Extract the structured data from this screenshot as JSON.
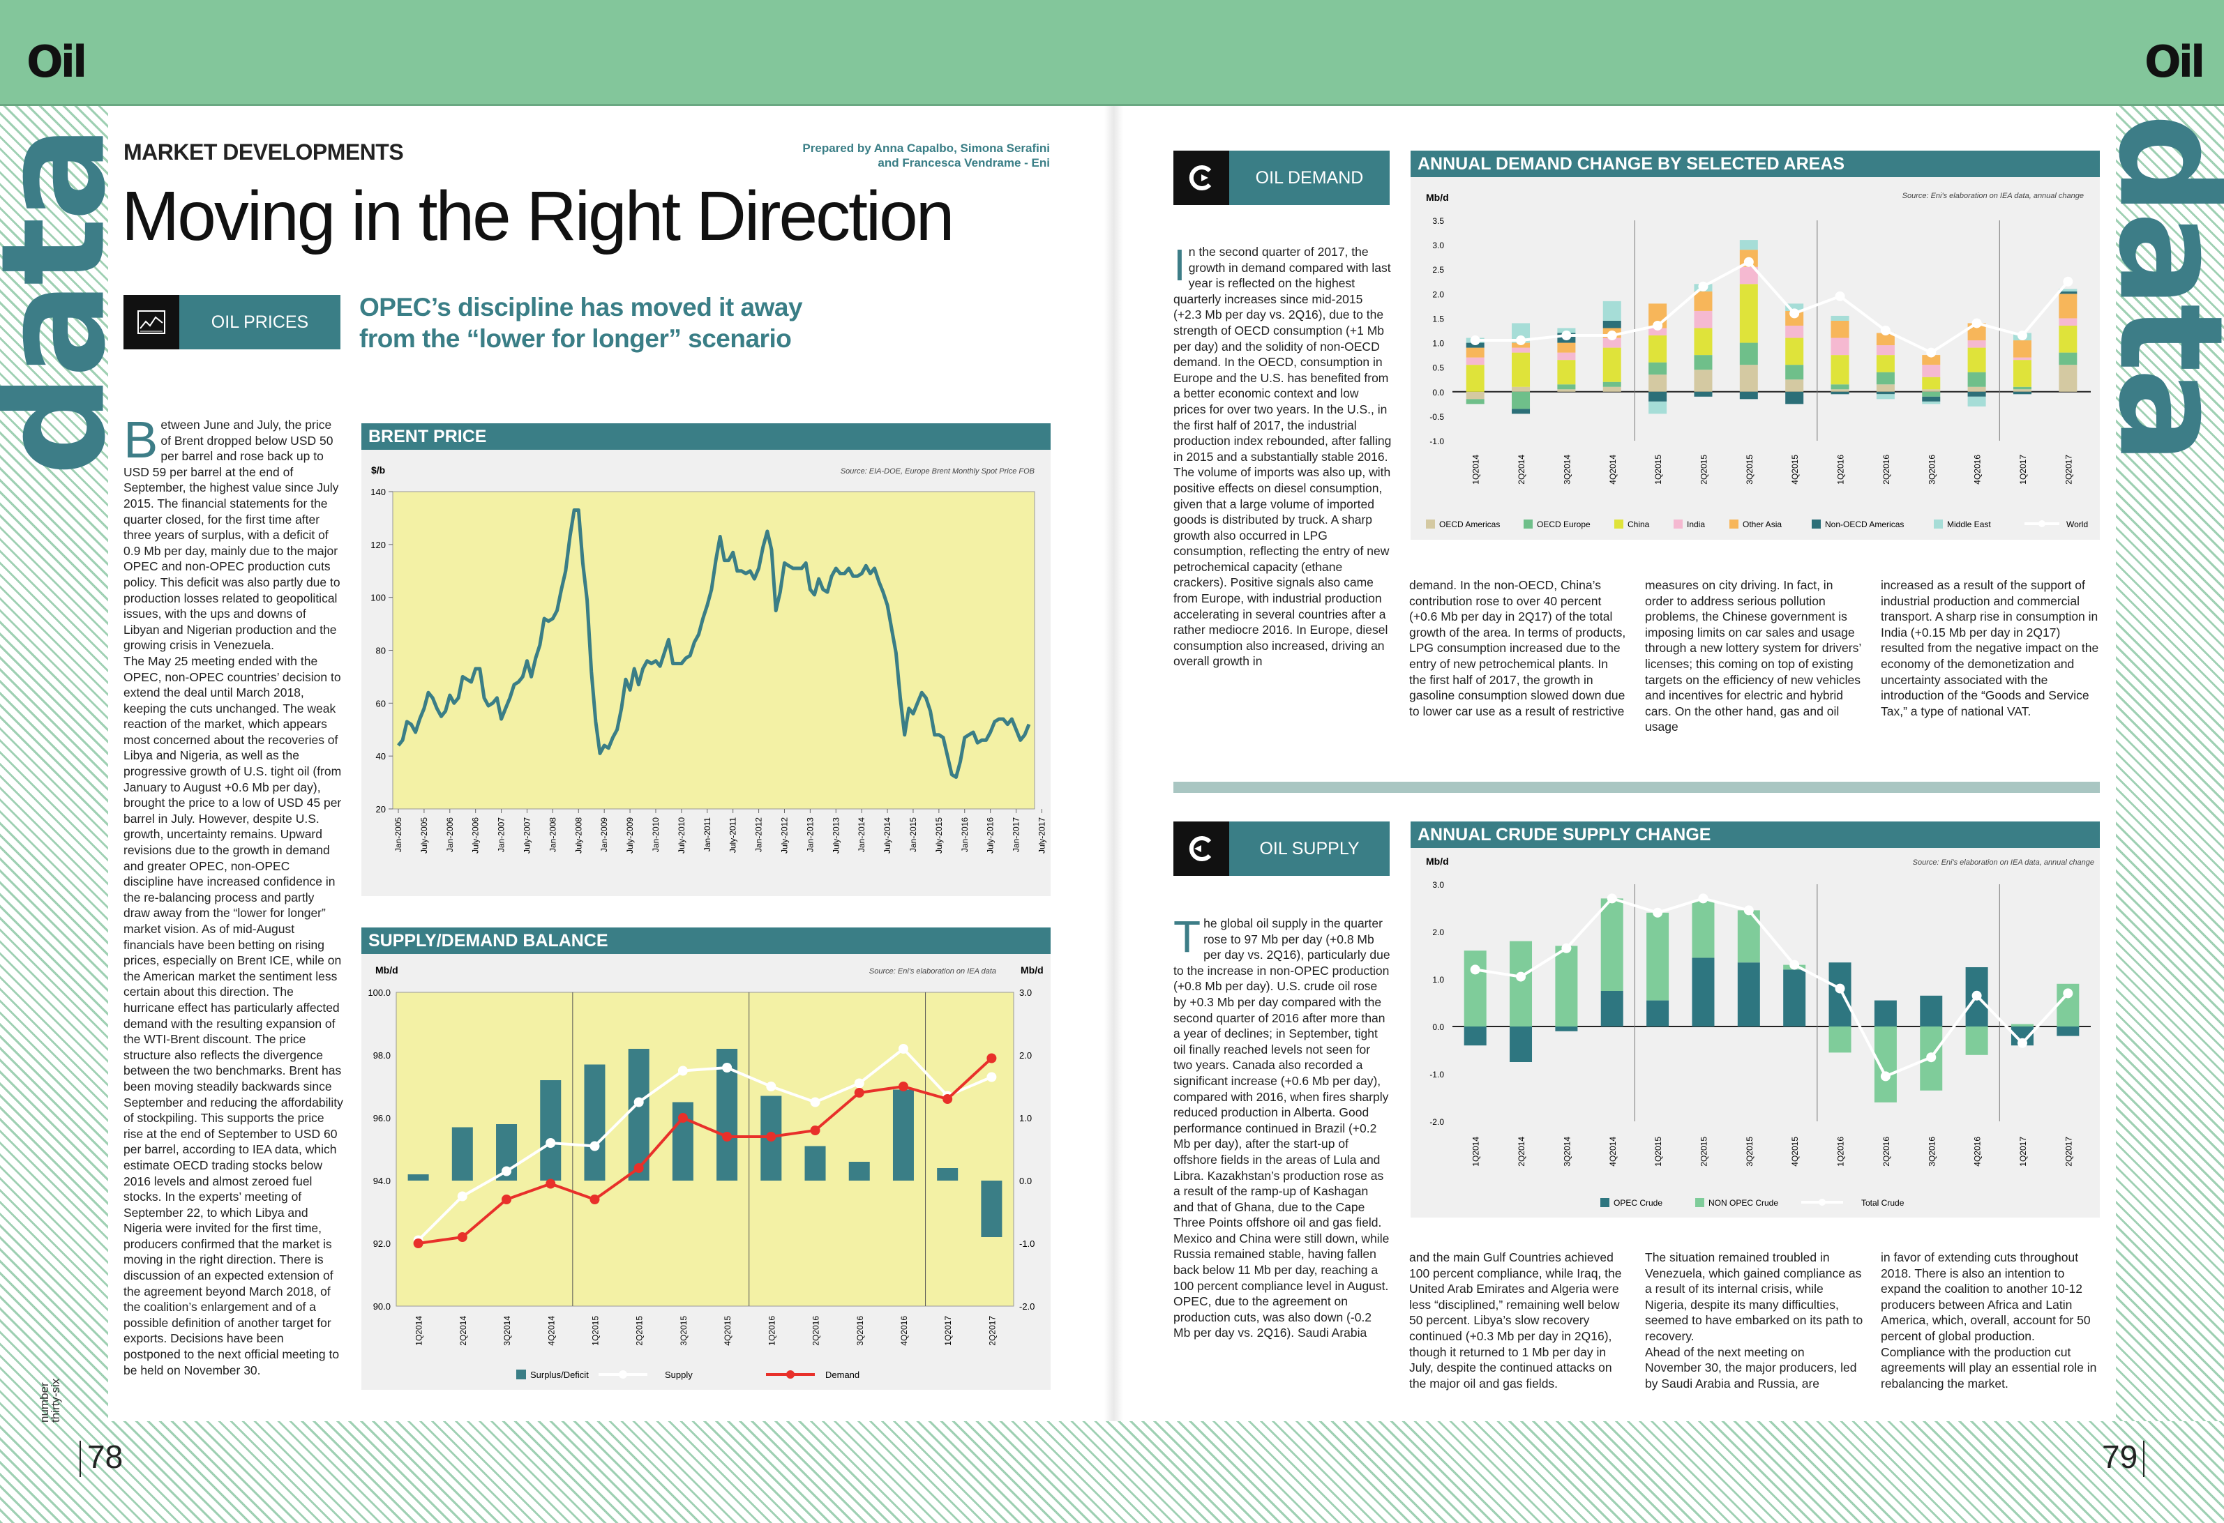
{
  "brand": {
    "logo_left": "Oil",
    "logo_right": "Oil",
    "side_word": "data"
  },
  "left_page": {
    "section": "MARKET DEVELOPMENTS",
    "credits": "Prepared by Anna Capalbo, Simona Serafini\nand Francesca Vendrame - Eni",
    "title": "Moving in the Right Direction",
    "category": "OIL PRICES",
    "subtitle": "OPEC’s discipline has moved it away\nfrom the “lower for longer” scenario",
    "dropcap": "B",
    "body": "etween June and July, the price of Brent dropped below USD 50 per barrel and rose back up to USD 59 per barrel at the end of September, the highest value since July 2015. The financial statements for the quarter closed, for the first time after three years of surplus, with a deficit of 0.9 Mb per day, mainly due to the major OPEC and non-OPEC production cuts policy. This deficit was also partly due to production losses related to geopolitical issues, with the ups and downs of Libyan and Nigerian production and the growing crisis in Venezuela.\nThe May 25 meeting ended with the OPEC, non-OPEC countries’ decision to extend the deal until March 2018, keeping the cuts unchanged. The weak reaction of the market, which appears most concerned about the recoveries of Libya and Nigeria, as well as the progressive growth of U.S. tight oil (from January to August +0.6 Mb per day), brought the price to a low of USD 45 per barrel in July. However, despite U.S. growth, uncertainty remains. Upward revisions due to the growth in demand and greater OPEC, non-OPEC discipline have increased confidence in the re-balancing process and partly draw away from the “lower for longer” market vision. As of mid-August financials have been betting on rising prices, especially on Brent ICE, while on the American market the sentiment less certain about this direction. The hurricane effect has particularly affected demand with the resulting expansion of the WTI-Brent discount. The price structure also reflects the divergence between the two benchmarks. Brent has been moving steadily backwards since September and reducing the affordability of stockpiling. This supports the price rise at the end of September to USD 60 per barrel, according to IEA data, which estimate OECD trading stocks below 2016 levels and almost zeroed fuel stocks. In the experts’ meeting of September 22, to which Libya and Nigeria were invited for the first time, producers confirmed that the market is moving in the right direction. There is discussion of an expected extension of the agreement beyond March 2018, of the coalition’s enlargement and of a possible definition of another target for exports. Decisions have been postponed to the next official meeting to be held on November 30.",
    "footer_label": "number\nthirty-six",
    "page_number": "78"
  },
  "right_page": {
    "demand_label": "OIL DEMAND",
    "supply_label": "OIL SUPPLY",
    "demand_dropcap": "I",
    "demand_col1": "n the second quarter of 2017, the growth in demand compared with last year is reflected on the highest quarterly increases since mid-2015 (+2.3 Mb per day vs. 2Q16), due to the strength of OECD consumption (+1 Mb per day) and the solidity of non-OECD demand. In the OECD, consumption in Europe and the U.S. has benefited from a better economic context and low prices for over two years. In the U.S., in the first half of 2017, the industrial production index rebounded, after falling in 2015 and a substantially stable 2016. The volume of imports was also up, with positive effects on diesel consumption, given that a large volume of imported goods is distributed by truck. A sharp growth also occurred in LPG consumption, reflecting the entry of new petrochemical capacity (ethane crackers). Positive signals also came from Europe, with industrial production accelerating in several countries after a rather mediocre 2016. In Europe, diesel consumption also increased, driving an overall growth in",
    "demand_col2": "demand. In the non-OECD, China’s contribution rose to over 40 percent (+0.6 Mb per day in 2Q17) of the total growth of the area. In terms of products, LPG consumption increased due to the entry of new petrochemical plants. In the first half of 2017, the growth in gasoline consumption slowed down due to lower car use as a result of restrictive",
    "demand_col3": "measures on city driving. In fact, in order to address serious pollution problems, the Chinese government is imposing limits on car sales and usage through a new lottery system for drivers’ licenses; this coming on top of existing targets on the efficiency of new vehicles and incentives for electric and hybrid cars. On the other hand, gas and oil usage",
    "demand_col4": "increased as a result of the support of industrial production and commercial transport. A sharp rise in consumption in India (+0.15 Mb per day in 2Q17) resulted from the negative impact on the economy of the demonetization and uncertainty associated with the introduction of the “Goods and Service Tax,” a type of national VAT.",
    "supply_dropcap": "T",
    "supply_col1": "he global oil supply in the quarter rose to 97 Mb per day (+0.8 Mb per day vs. 2Q16), particularly due to the increase in non-OPEC production (+0.8 Mb per day). U.S. crude oil rose by +0.3 Mb per day compared with the second quarter of 2016 after more than a year of declines; in September, tight oil finally reached levels not seen for two years. Canada also recorded a significant increase (+0.6 Mb per day), compared with 2016, when fires sharply reduced production in Alberta. Good performance continued in Brazil (+0.2 Mb per day), after the start-up of offshore fields in the areas of Lula and Libra. Kazakhstan’s production rose as a result of the ramp-up of Kashagan and that of Ghana, due to the Cape Three Points offshore oil and gas field.\nMexico and China were still down, while Russia remained stable, having fallen back below 11 Mb per day, reaching a 100 percent compliance level in August.\nOPEC, due to the agreement on production cuts, was also down (-0.2 Mb per day vs. 2Q16). Saudi Arabia",
    "supply_col2": "and the main Gulf Countries achieved 100 percent compliance, while Iraq, the United Arab Emirates and Algeria were less “disciplined,” remaining well below 50 percent. Libya’s slow recovery continued (+0.3 Mb per day in 2Q16), though it returned to 1 Mb per day in July, despite the continued attacks on the major oil and gas fields.",
    "supply_col3": "The situation remained troubled in Venezuela, which gained compliance as a result of its internal crisis, while Nigeria, despite its many difficulties, seemed to have embarked on its path to recovery.\nAhead of the next meeting on November 30, the major producers, led by Saudi Arabia and Russia, are",
    "supply_col4": "in favor of extending cuts throughout 2018. There is also an intention to expand the coalition to another 10-12 producers between Africa and Latin America, which, overall, account for 50 percent of global production. Compliance with the production cut agreements will play an essential role in rebalancing the market.",
    "page_number": "79"
  },
  "chart_data": [
    {
      "type": "line",
      "title": "BRENT PRICE",
      "ylabel": "$/b",
      "source": "Source: EIA-DOE, Europe Brent Monthly Spot Price FOB",
      "ylim": [
        20,
        140
      ],
      "yticks": [
        "140",
        "120",
        "100",
        "80",
        "60",
        "40",
        "20"
      ],
      "xticks": [
        "Jan-2005",
        "July-2005",
        "Jan-2006",
        "July-2006",
        "Jan-2007",
        "July-2007",
        "Jan-2008",
        "July-2008",
        "Jan-2009",
        "July-2009",
        "Jan-2010",
        "July-2010",
        "Jan-2011",
        "July-2011",
        "Jan-2012",
        "July-2012",
        "Jan-2013",
        "July-2013",
        "Jan-2014",
        "July-2014",
        "Jan-2015",
        "July-2015",
        "Jan-2016",
        "July-2016",
        "Jan-2017",
        "July-2017"
      ],
      "x_start": "Jan-2005",
      "x_step": "monthly",
      "values": [
        44,
        46,
        53,
        52,
        49,
        54,
        58,
        64,
        62,
        58,
        55,
        57,
        63,
        60,
        62,
        70,
        69,
        68,
        73,
        73,
        62,
        59,
        60,
        62,
        54,
        58,
        62,
        67,
        68,
        70,
        76,
        70,
        77,
        82,
        92,
        91,
        92,
        95,
        103,
        110,
        123,
        133,
        133,
        113,
        99,
        72,
        53,
        41,
        44,
        43,
        47,
        50,
        58,
        69,
        65,
        73,
        67,
        73,
        76,
        75,
        76,
        74,
        79,
        84,
        75,
        75,
        75,
        77,
        78,
        83,
        86,
        92,
        97,
        103,
        114,
        123,
        114,
        114,
        117,
        110,
        110,
        109,
        110,
        107,
        111,
        119,
        125,
        118,
        95,
        102,
        113,
        112,
        111,
        111,
        111,
        113,
        103,
        101,
        107,
        103,
        102,
        108,
        111,
        109,
        109,
        111,
        108,
        108,
        109,
        112,
        109,
        111,
        106,
        102,
        97,
        88,
        79,
        62,
        48,
        58,
        56,
        60,
        64,
        62,
        57,
        48,
        48,
        47,
        40,
        33,
        32,
        38,
        47,
        48,
        49,
        45,
        46,
        46,
        49,
        53,
        54,
        54,
        52,
        54,
        50,
        46,
        48,
        52
      ]
    },
    {
      "type": "bar+line",
      "title": "SUPPLY/DEMAND BALANCE",
      "ylabel_left": "Mb/d",
      "ylabel_right": "Mb/d",
      "source": "Source: Eni's elaboration on IEA data",
      "ylim_left": [
        90,
        100
      ],
      "ylim_right": [
        -2,
        3
      ],
      "yticks_left": [
        "100.0",
        "98.0",
        "96.0",
        "94.0",
        "92.0",
        "90.0"
      ],
      "yticks_right": [
        "3.0",
        "2.0",
        "1.0",
        "0.0",
        "-1.0",
        "-2.0"
      ],
      "categories": [
        "1Q2014",
        "2Q2014",
        "3Q2014",
        "4Q2014",
        "1Q2015",
        "2Q2015",
        "3Q2015",
        "4Q2015",
        "1Q2016",
        "2Q2016",
        "3Q2016",
        "4Q2016",
        "1Q2017",
        "2Q2017"
      ],
      "series": [
        {
          "name": "Surplus/Deficit",
          "axis": "right",
          "values": [
            0.1,
            0.85,
            0.9,
            1.6,
            1.85,
            2.1,
            1.25,
            2.1,
            1.35,
            0.55,
            0.3,
            1.45,
            0.2,
            -0.9
          ]
        },
        {
          "name": "Supply",
          "axis": "left",
          "values": [
            92.1,
            93.5,
            94.3,
            95.2,
            95.1,
            96.5,
            97.5,
            97.6,
            97.0,
            96.5,
            97.1,
            98.2,
            96.7,
            97.3
          ]
        },
        {
          "name": "Demand",
          "axis": "left",
          "values": [
            92.0,
            92.2,
            93.4,
            93.9,
            93.4,
            94.4,
            96.0,
            95.4,
            95.4,
            95.6,
            96.8,
            97.0,
            96.6,
            97.9
          ]
        }
      ]
    },
    {
      "type": "stacked-bar+line",
      "title": "ANNUAL DEMAND CHANGE BY SELECTED AREAS",
      "ylabel": "Mb/d",
      "source": "Source: Eni's elaboration on IEA data, annual change",
      "ylim": [
        -1,
        3.5
      ],
      "yticks": [
        "3.5",
        "3.0",
        "2.5",
        "2.0",
        "1.5",
        "1.0",
        "0.5",
        "0.0",
        "-0.5",
        "-1.0"
      ],
      "categories": [
        "1Q2014",
        "2Q2014",
        "3Q2014",
        "4Q2014",
        "1Q2015",
        "2Q2015",
        "3Q2015",
        "4Q2015",
        "1Q2016",
        "2Q2016",
        "3Q2016",
        "4Q2016",
        "1Q2017",
        "2Q2017"
      ],
      "series": [
        {
          "name": "OECD Americas",
          "values": [
            -0.15,
            0.1,
            0.05,
            0.1,
            0.35,
            0.45,
            0.55,
            0.25,
            0.05,
            0.15,
            0.05,
            0.1,
            0.05,
            0.55
          ]
        },
        {
          "name": "OECD Europe",
          "values": [
            -0.1,
            -0.35,
            0.1,
            0.1,
            0.25,
            0.3,
            0.45,
            0.3,
            0.1,
            0.25,
            -0.1,
            0.3,
            0.05,
            0.25
          ]
        },
        {
          "name": "China",
          "values": [
            0.55,
            0.7,
            0.5,
            0.7,
            0.55,
            0.55,
            1.2,
            0.55,
            0.6,
            0.35,
            0.25,
            0.5,
            0.55,
            0.55
          ]
        },
        {
          "name": "India",
          "values": [
            0.15,
            0.1,
            0.15,
            0.2,
            0.15,
            0.35,
            0.35,
            0.25,
            0.35,
            0.2,
            0.25,
            0.15,
            0.05,
            0.15
          ]
        },
        {
          "name": "Other Asia",
          "values": [
            0.2,
            0.1,
            0.2,
            0.2,
            0.5,
            0.4,
            0.35,
            0.3,
            0.35,
            0.25,
            0.2,
            0.35,
            0.35,
            0.5
          ]
        },
        {
          "name": "Non-OECD Americas",
          "values": [
            0.1,
            -0.1,
            0.2,
            0.15,
            -0.2,
            -0.1,
            -0.15,
            -0.25,
            -0.05,
            -0.05,
            -0.1,
            -0.1,
            -0.05,
            0.05
          ]
        },
        {
          "name": "Middle East",
          "values": [
            0.1,
            0.4,
            0.1,
            0.4,
            -0.25,
            0.15,
            0.2,
            0.15,
            0.1,
            -0.1,
            -0.05,
            -0.2,
            0.15,
            0.05
          ]
        }
      ],
      "line": {
        "name": "World",
        "values": [
          1.05,
          1.05,
          1.15,
          1.15,
          1.35,
          2.15,
          2.65,
          1.6,
          1.95,
          1.25,
          0.8,
          1.4,
          1.15,
          2.25
        ]
      }
    },
    {
      "type": "stacked-bar+line",
      "title": "ANNUAL CRUDE SUPPLY CHANGE",
      "ylabel": "Mb/d",
      "source": "Source: Eni's elaboration on IEA data, annual change",
      "ylim": [
        -2,
        3
      ],
      "yticks": [
        "3.0",
        "2.0",
        "1.0",
        "0.0",
        "-1.0",
        "-2.0"
      ],
      "categories": [
        "1Q2014",
        "2Q2014",
        "3Q2014",
        "4Q2014",
        "1Q2015",
        "2Q2015",
        "3Q2015",
        "4Q2015",
        "1Q2016",
        "2Q2016",
        "3Q2016",
        "4Q2016",
        "1Q2017",
        "2Q2017"
      ],
      "series": [
        {
          "name": "OPEC Crude",
          "values": [
            -0.4,
            -0.75,
            -0.1,
            0.75,
            0.55,
            1.45,
            1.35,
            1.2,
            1.35,
            0.55,
            0.65,
            1.25,
            -0.4,
            -0.2
          ]
        },
        {
          "name": "NON OPEC Crude",
          "values": [
            1.6,
            1.8,
            1.7,
            1.95,
            1.85,
            1.2,
            1.1,
            0.1,
            -0.55,
            -1.6,
            -1.35,
            -0.6,
            0.05,
            0.9
          ]
        }
      ],
      "line": {
        "name": "Total Crude",
        "values": [
          1.2,
          1.05,
          1.65,
          2.7,
          2.4,
          2.7,
          2.45,
          1.3,
          0.8,
          -1.05,
          -0.65,
          0.65,
          -0.35,
          0.7
        ]
      }
    }
  ],
  "colors": {
    "teal": "#3a7e86",
    "green_band": "#83c69b",
    "chart_bg": "#f3f1a5",
    "red": "#e8302a",
    "opec": "#2e7680",
    "nonopec": "#7fcc9a"
  },
  "palette_demand": [
    "#d4c9a2",
    "#6fbf8a",
    "#dfe33a",
    "#f5b9d1",
    "#f7b65a",
    "#2c6f78",
    "#a6ddd7"
  ]
}
